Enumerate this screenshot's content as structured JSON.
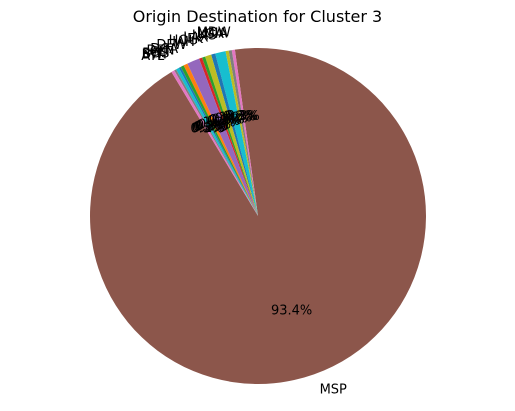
{
  "chart_data": {
    "type": "pie",
    "title": "Origin Destination for Cluster 3",
    "start_angle_deg": 121,
    "direction": "counterclockwise",
    "slices": [
      {
        "label": "MSP",
        "percent": 93.4,
        "pct_label": "93.4%",
        "color": "#8c564b"
      },
      {
        "label": "MDW",
        "percent": 0.3,
        "pct_label": "0.3%",
        "color": "#e377c2"
      },
      {
        "label": "MIA",
        "percent": 0.3,
        "pct_label": "0.3%",
        "color": "#7f7f7f"
      },
      {
        "label": "LGA",
        "percent": 0.3,
        "pct_label": "0.3%",
        "color": "#bcbd22"
      },
      {
        "label": "LAS",
        "percent": 1.0,
        "pct_label": "1.0%",
        "color": "#17becf"
      },
      {
        "label": "LAX",
        "percent": 0.4,
        "pct_label": "0.4%",
        "color": "#1f77b4"
      },
      {
        "label": "JFK",
        "percent": 0.6,
        "pct_label": "0.6%",
        "color": "#bcbd22"
      },
      {
        "label": "HOU",
        "percent": 0.3,
        "pct_label": "0.3%",
        "color": "#2ca02c"
      },
      {
        "label": "IAH",
        "percent": 0.3,
        "pct_label": "0.3%",
        "color": "#d62728"
      },
      {
        "label": "DFW",
        "percent": 1.2,
        "pct_label": "1.2%",
        "color": "#9467bd"
      },
      {
        "label": "DCA",
        "percent": 0.4,
        "pct_label": "0.4%",
        "color": "#ff7f0e"
      },
      {
        "label": "DEN",
        "percent": 0.3,
        "pct_label": "0.3%",
        "color": "#2ca02c"
      },
      {
        "label": "CLT",
        "percent": 0.2,
        "pct_label": "0.2%",
        "color": "#1f77b4"
      },
      {
        "label": "BOS",
        "percent": 0.3,
        "pct_label": "0.3%",
        "color": "#17becf"
      },
      {
        "label": "BWI",
        "percent": 0.2,
        "pct_label": "0.2%",
        "color": "#7f7f7f"
      },
      {
        "label": "ATL",
        "percent": 0.3,
        "pct_label": "0.3%",
        "color": "#e377c2"
      }
    ]
  }
}
